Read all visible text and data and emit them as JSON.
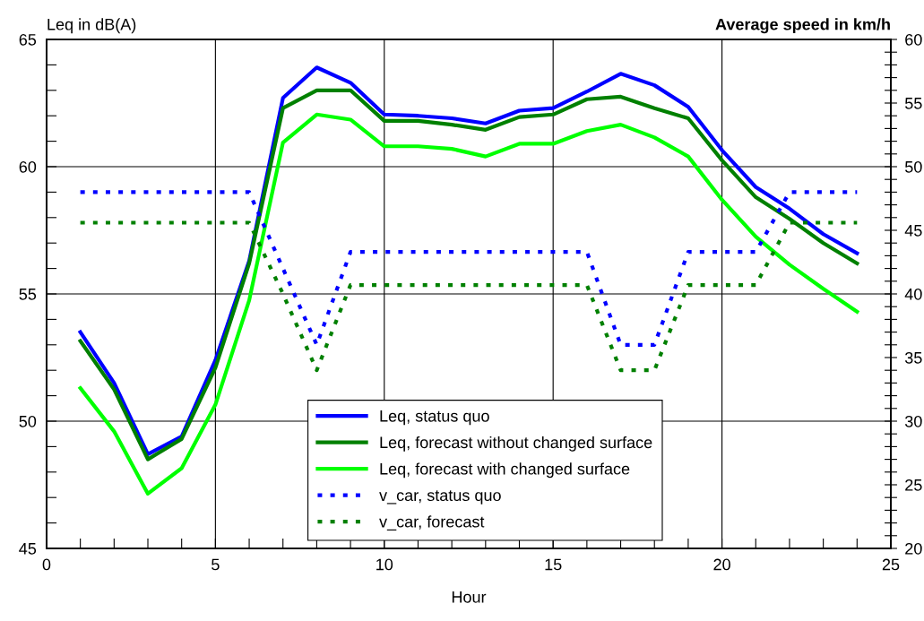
{
  "chart_data": {
    "type": "line",
    "xlabel": "Hour",
    "ylabel": "Leq in dB(A)",
    "y2label": "Average speed in km/h",
    "x": [
      1,
      2,
      3,
      4,
      5,
      6,
      7,
      8,
      9,
      10,
      11,
      12,
      13,
      14,
      15,
      16,
      17,
      18,
      19,
      20,
      21,
      22,
      23,
      24
    ],
    "series": [
      {
        "name": "Leq, status quo",
        "color": "#0000ff",
        "line_style": "solid",
        "values": [
          53.5,
          51.5,
          48.7,
          49.4,
          52.4,
          56.3,
          62.7,
          63.9,
          63.3,
          62.05,
          62.0,
          61.9,
          61.7,
          62.2,
          62.3,
          62.95,
          63.65,
          63.2,
          62.35,
          60.65,
          59.2,
          58.35,
          57.35,
          56.6
        ]
      },
      {
        "name": "Leq, forecast without changed surface",
        "color": "#008000",
        "line_style": "solid",
        "values": [
          53.15,
          51.25,
          48.5,
          49.3,
          52.1,
          56.2,
          62.3,
          63.0,
          63.0,
          61.8,
          61.8,
          61.65,
          61.45,
          61.95,
          62.05,
          62.65,
          62.75,
          62.3,
          61.9,
          60.25,
          58.8,
          57.95,
          57.0,
          56.2
        ]
      },
      {
        "name": "Leq, forecast with changed surface",
        "color": "#00ff00",
        "line_style": "solid",
        "values": [
          51.3,
          49.6,
          47.15,
          48.15,
          50.65,
          54.75,
          60.95,
          62.05,
          61.85,
          60.8,
          60.8,
          60.7,
          60.4,
          60.9,
          60.9,
          61.4,
          61.65,
          61.15,
          60.4,
          58.7,
          57.25,
          56.15,
          55.2,
          54.3
        ]
      },
      {
        "name": "v_car, status quo",
        "color": "#0000ff",
        "line_style": "dotted",
        "axis": "y2",
        "values": [
          48,
          48,
          48,
          48,
          48,
          48,
          42,
          36,
          43.3,
          43.3,
          43.3,
          43.3,
          43.3,
          43.3,
          43.3,
          43.3,
          36,
          36,
          43.3,
          43.3,
          43.3,
          48,
          48,
          48
        ]
      },
      {
        "name": "v_car, forecast",
        "color": "#008000",
        "line_style": "dotted",
        "axis": "y2",
        "values": [
          45.6,
          45.6,
          45.6,
          45.6,
          45.6,
          45.6,
          40,
          34,
          40.7,
          40.7,
          40.7,
          40.7,
          40.7,
          40.7,
          40.7,
          40.7,
          34,
          34,
          40.7,
          40.7,
          40.7,
          45.6,
          45.6,
          45.6
        ]
      }
    ],
    "xlim": [
      0,
      25
    ],
    "xticks": [
      0,
      {
        "value": 1,
        "label": null
      },
      {
        "value": 2,
        "label": null
      },
      {
        "value": 3,
        "label": null
      },
      {
        "value": 4,
        "label": null
      },
      5,
      {
        "value": 6,
        "label": null
      },
      {
        "value": 7,
        "label": null
      },
      {
        "value": 8,
        "label": null
      },
      {
        "value": 9,
        "label": null
      },
      10,
      {
        "value": 11,
        "label": null
      },
      {
        "value": 12,
        "label": null
      },
      {
        "value": 13,
        "label": null
      },
      {
        "value": 14,
        "label": null
      },
      15,
      {
        "value": 16,
        "label": null
      },
      {
        "value": 17,
        "label": null
      },
      {
        "value": 18,
        "label": null
      },
      {
        "value": 19,
        "label": null
      },
      20,
      {
        "value": 21,
        "label": null
      },
      {
        "value": 22,
        "label": null
      },
      {
        "value": 23,
        "label": null
      },
      {
        "value": 24,
        "label": null
      },
      25
    ],
    "ylim": [
      45,
      65
    ],
    "yticks": [
      45,
      {
        "value": 46,
        "label": null
      },
      {
        "value": 47,
        "label": null
      },
      {
        "value": 48,
        "label": null
      },
      {
        "value": 49,
        "label": null
      },
      50,
      {
        "value": 51,
        "label": null
      },
      {
        "value": 52,
        "label": null
      },
      {
        "value": 53,
        "label": null
      },
      {
        "value": 54,
        "label": null
      },
      55,
      {
        "value": 56,
        "label": null
      },
      {
        "value": 57,
        "label": null
      },
      {
        "value": 58,
        "label": null
      },
      {
        "value": 59,
        "label": null
      },
      60,
      {
        "value": 61,
        "label": null
      },
      {
        "value": 62,
        "label": null
      },
      {
        "value": 63,
        "label": null
      },
      {
        "value": 64,
        "label": null
      },
      65
    ],
    "y2lim": [
      20,
      60
    ],
    "y2ticks": [
      20,
      {
        "value": 21,
        "label": null
      },
      {
        "value": 22,
        "label": null
      },
      {
        "value": 23,
        "label": null
      },
      {
        "value": 24,
        "label": null
      },
      25,
      {
        "value": 26,
        "label": null
      },
      {
        "value": 27,
        "label": null
      },
      {
        "value": 28,
        "label": null
      },
      {
        "value": 29,
        "label": null
      },
      30,
      {
        "value": 31,
        "label": null
      },
      {
        "value": 32,
        "label": null
      },
      {
        "value": 33,
        "label": null
      },
      {
        "value": 34,
        "label": null
      },
      35,
      {
        "value": 36,
        "label": null
      },
      {
        "value": 37,
        "label": null
      },
      {
        "value": 38,
        "label": null
      },
      {
        "value": 39,
        "label": null
      },
      40,
      {
        "value": 41,
        "label": null
      },
      {
        "value": 42,
        "label": null
      },
      {
        "value": 43,
        "label": null
      },
      {
        "value": 44,
        "label": null
      },
      45,
      {
        "value": 46,
        "label": null
      },
      {
        "value": 47,
        "label": null
      },
      {
        "value": 48,
        "label": null
      },
      {
        "value": 49,
        "label": null
      },
      50,
      {
        "value": 51,
        "label": null
      },
      {
        "value": 52,
        "label": null
      },
      {
        "value": 53,
        "label": null
      },
      {
        "value": 54,
        "label": null
      },
      55,
      {
        "value": 56,
        "label": null
      },
      {
        "value": 57,
        "label": null
      },
      {
        "value": 58,
        "label": null
      },
      {
        "value": 59,
        "label": null
      },
      60
    ],
    "grid": true,
    "legend": "bottom",
    "marker": "none"
  }
}
